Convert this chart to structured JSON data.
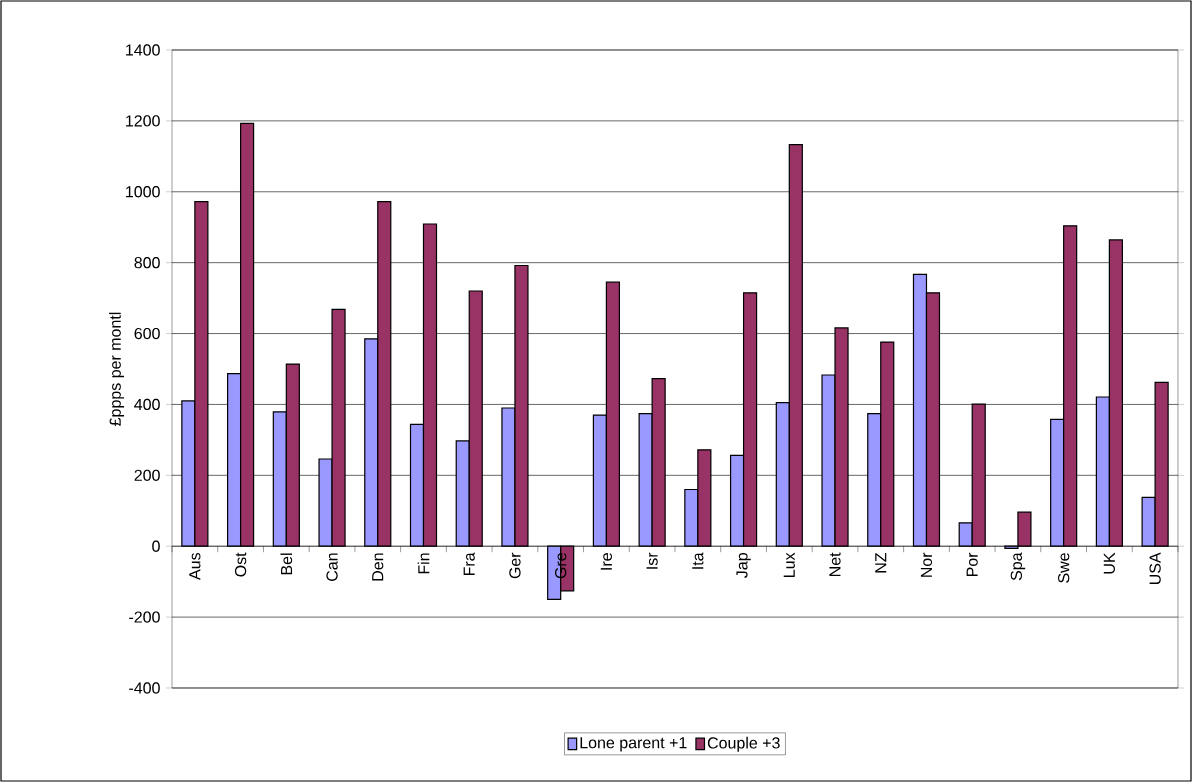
{
  "chart_data": {
    "type": "bar",
    "ylabel": "£ppps per montl",
    "categories": [
      "Aus",
      "Ost",
      "Bel",
      "Can",
      "Den",
      "Fin",
      "Fra",
      "Ger",
      "Gre",
      "Ire",
      "Isr",
      "Ita",
      "Jap",
      "Lux",
      "Net",
      "NZ",
      "Nor",
      "Por",
      "Spa",
      "Swe",
      "UK",
      "USA"
    ],
    "series": [
      {
        "name": "Lone parent +1",
        "color": "#9999ff",
        "values": [
          410,
          487,
          379,
          246,
          585,
          344,
          297,
          390,
          -150,
          370,
          374,
          160,
          256,
          405,
          483,
          374,
          767,
          66,
          -6,
          358,
          421,
          138
        ]
      },
      {
        "name": "Couple +3",
        "color": "#993366",
        "values": [
          972,
          1193,
          514,
          668,
          972,
          909,
          720,
          792,
          -126,
          745,
          473,
          272,
          715,
          1133,
          616,
          576,
          715,
          401,
          96,
          904,
          864,
          462
        ]
      }
    ],
    "ylim": [
      -400,
      1400
    ],
    "yticks": [
      -400,
      -200,
      0,
      200,
      400,
      600,
      800,
      1000,
      1200,
      1400
    ],
    "grid": "y",
    "legend": "bottom"
  }
}
